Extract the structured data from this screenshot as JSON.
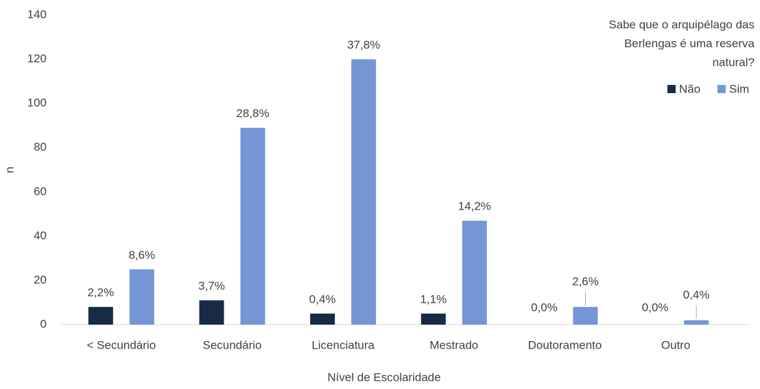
{
  "chart_data": {
    "type": "bar",
    "legend_title": [
      "Sabe que o arquipélago das",
      "Berlengas é uma reserva",
      "natural?"
    ],
    "x_label": "Nível de Escolaridade",
    "y_label": "n",
    "categories": [
      "< Secundário",
      "Secundário",
      "Licenciatura",
      "Mestrado",
      "Doutoramento",
      "Outro"
    ],
    "series": [
      {
        "name": "Não",
        "color": "#172a46",
        "values": [
          8,
          11,
          5,
          5,
          0,
          0
        ],
        "value_labels": [
          "2,2%",
          "3,7%",
          "0,4%",
          "1,1%",
          "0,0%",
          "0,0%"
        ]
      },
      {
        "name": "Sim",
        "color": "#7496d4",
        "values": [
          25,
          89,
          120,
          47,
          8,
          2
        ],
        "value_labels": [
          "8,6%",
          "28,8%",
          "37,8%",
          "14,2%",
          "2,6%",
          "0,4%"
        ]
      }
    ],
    "ylim": [
      0,
      140
    ],
    "yticks": [
      0,
      20,
      40,
      60,
      80,
      100,
      120,
      140
    ],
    "grid": false,
    "legend": "top-right"
  }
}
